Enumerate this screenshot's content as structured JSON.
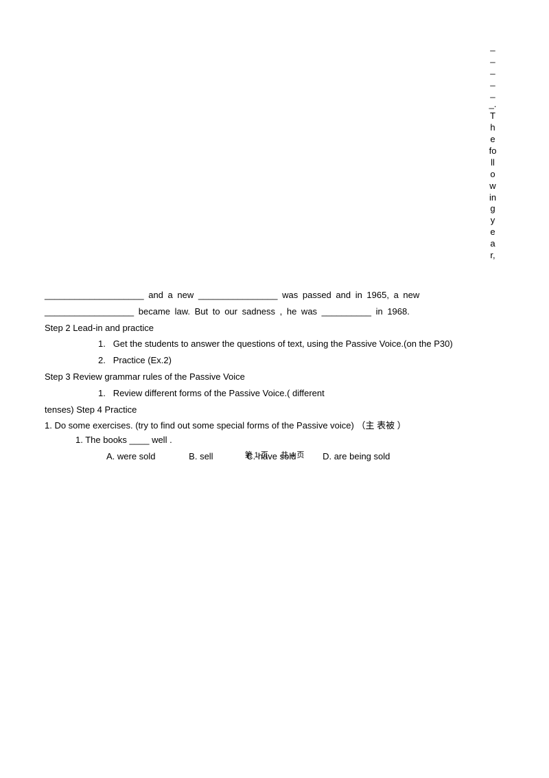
{
  "vertical_text": "______. The following year,",
  "paragraph1_prefix": "____________________",
  "paragraph1_mid1": " and a new ",
  "paragraph1_blank2": "________________",
  "paragraph1_mid2": " was passed and in 1965, a new",
  "paragraph2_blank": "__________________",
  "paragraph2_text": " became law. But to our sadness , he was ",
  "paragraph2_blank2": "__________",
  "paragraph2_end": " in 1968.",
  "step2_title": "Step 2 Lead-in and practice",
  "step2_item1_num": "1.",
  "step2_item1_text": "Get the students to answer the questions of text, using the Passive Voice.(on the P30)",
  "step2_item2_num": "2.",
  "step2_item2_text": "Practice (Ex.2)",
  "step3_title": "Step 3 Review grammar rules of the Passive Voice",
  "step3_item1_num": "1.",
  "step3_item1_text": "Review different forms of the Passive Voice.( different",
  "step3_continuation": "tenses) Step 4 Practice",
  "practice_text": "1. Do some exercises. (try to find out some special forms of the Passive voice)   （主 表被 ）",
  "question1": "1. The books ____ well .",
  "option_a": "A. were sold",
  "option_b": "B. sell",
  "option_c": "C. have sold",
  "option_d": "D. are being sold",
  "footer_page_label": "第",
  "footer_page_num": "1",
  "footer_page_suffix": "页",
  "footer_total_label": "共",
  "footer_total_num": "4",
  "footer_total_suffix": "页"
}
